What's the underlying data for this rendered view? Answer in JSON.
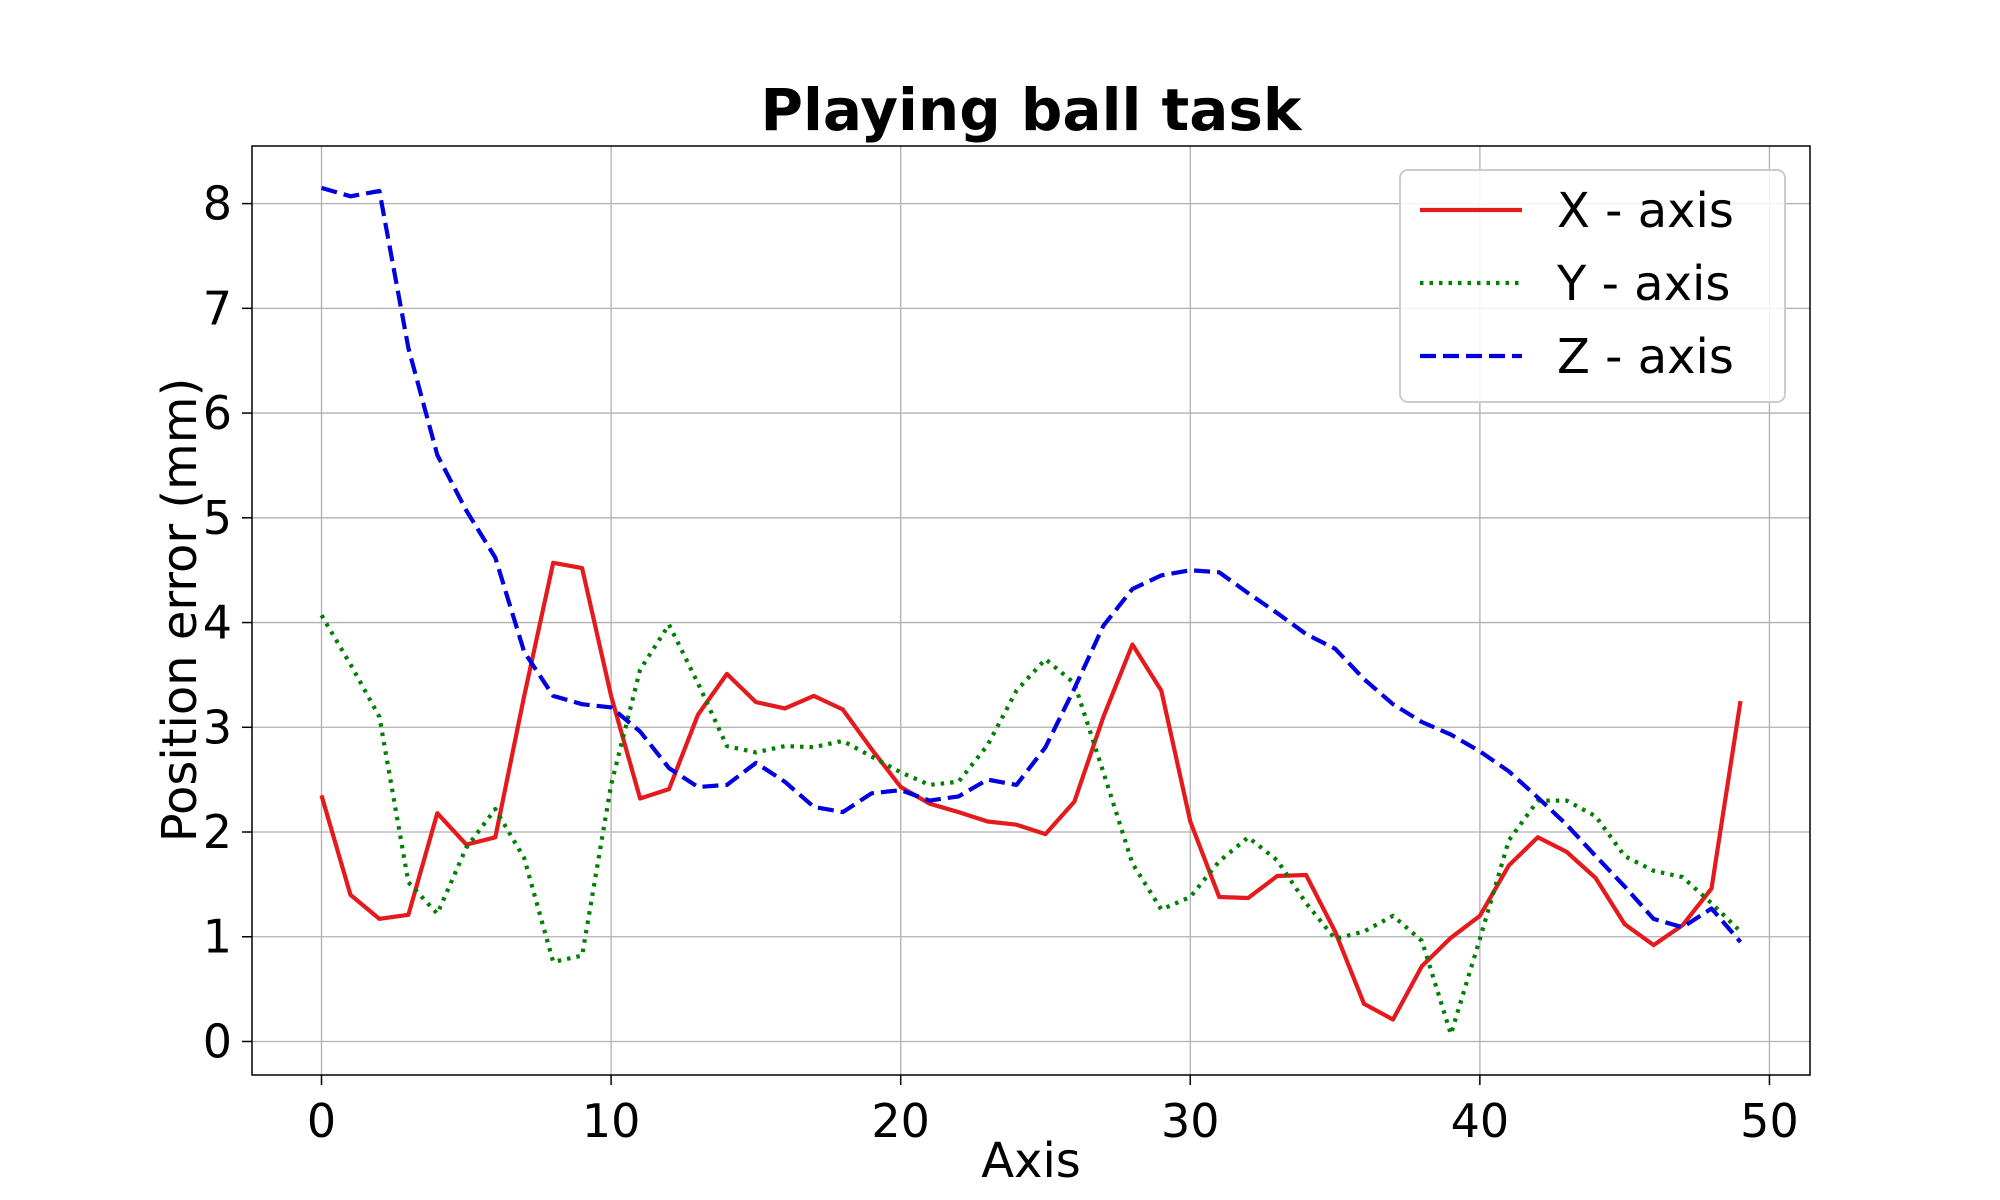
{
  "chart_data": {
    "type": "line",
    "title": "Playing ball task",
    "xlabel": "Axis",
    "ylabel": "Position error (mm)",
    "xlim": [
      -2.4,
      51.4
    ],
    "ylim": [
      -0.32,
      8.55
    ],
    "xticks": [
      0,
      10,
      20,
      30,
      40,
      50
    ],
    "yticks": [
      0,
      1,
      2,
      3,
      4,
      5,
      6,
      7,
      8
    ],
    "grid": true,
    "legend_position": "top-right",
    "x": [
      0,
      1,
      2,
      3,
      4,
      5,
      6,
      7,
      8,
      9,
      10,
      11,
      12,
      13,
      14,
      15,
      16,
      17,
      18,
      19,
      20,
      21,
      22,
      23,
      24,
      25,
      26,
      27,
      28,
      29,
      30,
      31,
      32,
      33,
      34,
      35,
      36,
      37,
      38,
      39,
      40,
      41,
      42,
      43,
      44,
      45,
      46,
      47,
      48,
      49
    ],
    "series": [
      {
        "name": "X - axis",
        "color": "#e41a1c",
        "dash": "solid",
        "values": [
          2.35,
          1.4,
          1.17,
          1.21,
          2.18,
          1.88,
          1.95,
          3.3,
          4.57,
          4.52,
          3.3,
          2.32,
          2.41,
          3.12,
          3.51,
          3.24,
          3.18,
          3.3,
          3.17,
          2.79,
          2.43,
          2.27,
          2.19,
          2.1,
          2.07,
          1.98,
          2.29,
          3.1,
          3.79,
          3.35,
          2.1,
          1.38,
          1.37,
          1.58,
          1.59,
          1.05,
          0.36,
          0.21,
          0.72,
          0.99,
          1.2,
          1.68,
          1.95,
          1.81,
          1.56,
          1.12,
          0.92,
          1.11,
          1.46,
          3.25
        ]
      },
      {
        "name": "Y - axis",
        "color": "#008000",
        "dash": "dotted",
        "values": [
          4.07,
          3.6,
          3.1,
          1.52,
          1.22,
          1.85,
          2.22,
          1.75,
          0.76,
          0.82,
          2.45,
          3.55,
          3.98,
          3.42,
          2.82,
          2.76,
          2.82,
          2.81,
          2.87,
          2.72,
          2.57,
          2.45,
          2.48,
          2.83,
          3.35,
          3.65,
          3.42,
          2.57,
          1.7,
          1.26,
          1.38,
          1.72,
          1.95,
          1.73,
          1.32,
          0.98,
          1.05,
          1.2,
          0.96,
          0.07,
          0.98,
          1.92,
          2.3,
          2.3,
          2.15,
          1.77,
          1.63,
          1.57,
          1.32,
          1.05
        ]
      },
      {
        "name": "Z - axis",
        "color": "#0000e0",
        "dash": "dashed",
        "values": [
          8.15,
          8.07,
          8.12,
          6.62,
          5.6,
          5.07,
          4.62,
          3.72,
          3.3,
          3.22,
          3.19,
          2.96,
          2.61,
          2.43,
          2.45,
          2.66,
          2.48,
          2.24,
          2.19,
          2.37,
          2.4,
          2.3,
          2.34,
          2.5,
          2.45,
          2.81,
          3.37,
          3.97,
          4.32,
          4.45,
          4.5,
          4.48,
          4.28,
          4.09,
          3.89,
          3.75,
          3.46,
          3.22,
          3.05,
          2.93,
          2.77,
          2.58,
          2.33,
          2.07,
          1.77,
          1.48,
          1.17,
          1.09,
          1.27,
          0.95
        ]
      }
    ]
  }
}
